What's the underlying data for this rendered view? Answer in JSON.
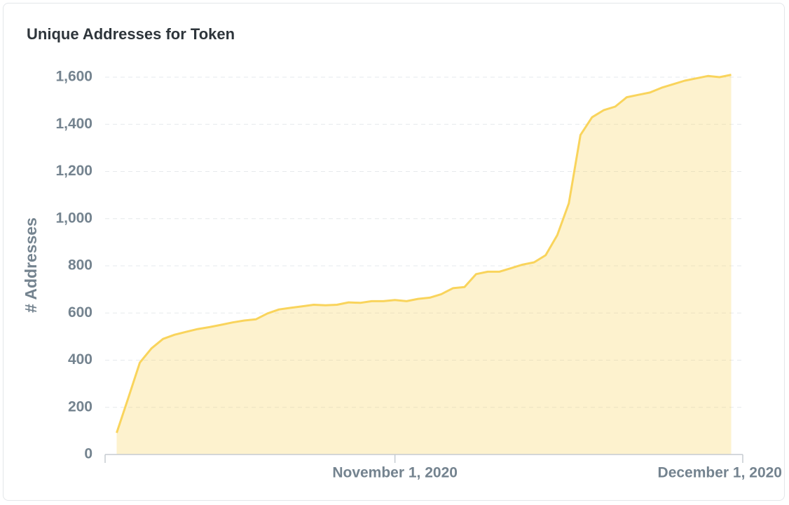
{
  "chart_data": {
    "type": "area",
    "title": "Unique Addresses for Token",
    "y_label": "# Addresses",
    "x": [
      "2020-10-08",
      "2020-10-09",
      "2020-10-10",
      "2020-10-11",
      "2020-10-12",
      "2020-10-13",
      "2020-10-14",
      "2020-10-15",
      "2020-10-16",
      "2020-10-17",
      "2020-10-18",
      "2020-10-19",
      "2020-10-20",
      "2020-10-21",
      "2020-10-22",
      "2020-10-23",
      "2020-10-24",
      "2020-10-25",
      "2020-10-26",
      "2020-10-27",
      "2020-10-28",
      "2020-10-29",
      "2020-10-30",
      "2020-10-31",
      "2020-11-01",
      "2020-11-02",
      "2020-11-03",
      "2020-11-04",
      "2020-11-05",
      "2020-11-06",
      "2020-11-07",
      "2020-11-08",
      "2020-11-09",
      "2020-11-10",
      "2020-11-11",
      "2020-11-12",
      "2020-11-13",
      "2020-11-14",
      "2020-11-15",
      "2020-11-16",
      "2020-11-17",
      "2020-11-18",
      "2020-11-19",
      "2020-11-20",
      "2020-11-21",
      "2020-11-22",
      "2020-11-23",
      "2020-11-24",
      "2020-11-25",
      "2020-11-26",
      "2020-11-27",
      "2020-11-28",
      "2020-11-29",
      "2020-11-30"
    ],
    "values": [
      92,
      240,
      390,
      450,
      490,
      508,
      520,
      532,
      540,
      550,
      560,
      568,
      573,
      598,
      615,
      622,
      628,
      635,
      633,
      635,
      645,
      643,
      650,
      650,
      655,
      650,
      660,
      665,
      680,
      705,
      710,
      765,
      775,
      775,
      790,
      805,
      815,
      845,
      930,
      1065,
      1355,
      1430,
      1460,
      1475,
      1515,
      1525,
      1535,
      1555,
      1570,
      1585,
      1595,
      1605,
      1600,
      1610
    ],
    "color": "#f9d45c",
    "xlim": [
      "2020-10-07",
      "2020-12-01"
    ],
    "xticks": [
      {
        "value": "2020-11-01",
        "label": "November 1, 2020"
      },
      {
        "value": "2020-12-01",
        "label": "December 1, 2020"
      }
    ],
    "ylim": [
      0,
      1600
    ],
    "yticks": [
      0,
      200,
      400,
      600,
      800,
      {
        "value": 1000,
        "label": "1,000"
      },
      {
        "value": 1200,
        "label": "1,200"
      },
      {
        "value": 1400,
        "label": "1,400"
      },
      {
        "value": 1600,
        "label": "1,600"
      }
    ],
    "grid": true
  }
}
